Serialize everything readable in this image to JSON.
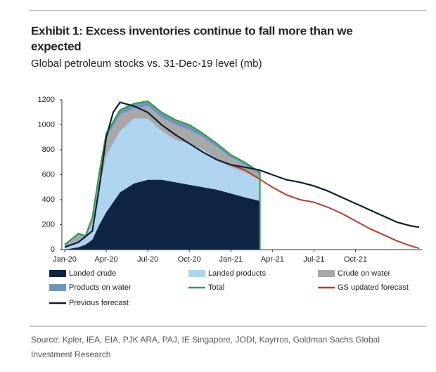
{
  "chart_data": {
    "type": "area",
    "title": [
      "Exhibit 1: Excess inventories continue to fall more than we",
      "expected"
    ],
    "subtitle": "Global petroleum stocks vs. 31-Dec-19 level (mb)",
    "source": [
      "Source: Kpler, IEA, EIA, PJK ARA, PAJ, IE Singapore, JODI, Kayrros, Goldman Sachs Global",
      "Investment Research"
    ],
    "xlim": [
      0,
      25.8
    ],
    "xticks": [
      {
        "value": 0,
        "label": "Jan-20"
      },
      {
        "value": 3,
        "label": "Apr-20"
      },
      {
        "value": 6,
        "label": "Jul-20"
      },
      {
        "value": 9,
        "label": "Oct-20"
      },
      {
        "value": 12,
        "label": "Jan-21"
      },
      {
        "value": 15,
        "label": "Apr-21"
      },
      {
        "value": 18,
        "label": "Jul-21"
      },
      {
        "value": 21,
        "label": "Oct-21"
      }
    ],
    "ylim": [
      0,
      1200
    ],
    "yticks": [
      0,
      200,
      400,
      600,
      800,
      1000,
      1200
    ],
    "series": [
      {
        "name": "Landed crude",
        "color": "#0f2444",
        "stacked": true,
        "x": [
          0,
          1,
          1.5,
          2,
          2.5,
          3,
          4,
          5,
          6,
          7,
          8,
          9,
          10,
          11,
          12,
          13,
          14.1
        ],
        "values": [
          0,
          20,
          40,
          80,
          200,
          300,
          460,
          530,
          560,
          560,
          540,
          520,
          500,
          480,
          450,
          420,
          390
        ]
      },
      {
        "name": "Landed products",
        "color": "#aed4ef",
        "stacked": true,
        "x": [
          0,
          1,
          1.5,
          2,
          2.5,
          3,
          4,
          5,
          6,
          7,
          8,
          9,
          10,
          11,
          12,
          13,
          14.1
        ],
        "values": [
          10,
          40,
          50,
          120,
          300,
          450,
          490,
          520,
          490,
          390,
          340,
          330,
          300,
          240,
          210,
          200,
          170
        ]
      },
      {
        "name": "Crude on water",
        "color": "#a8a8a8",
        "stacked": true,
        "x": [
          0,
          1,
          1.5,
          2,
          2.5,
          3,
          4,
          5,
          6,
          7,
          8,
          9,
          10,
          11,
          12,
          13,
          14.1
        ],
        "values": [
          20,
          60,
          10,
          50,
          100,
          150,
          130,
          80,
          100,
          110,
          120,
          110,
          100,
          100,
          80,
          60,
          40
        ]
      },
      {
        "name": "Products on water",
        "color": "#6f95bd",
        "stacked": true,
        "x": [
          0,
          1,
          1.5,
          2,
          2.5,
          3,
          4,
          5,
          6,
          7,
          8,
          9,
          10,
          11,
          12,
          13,
          14.1
        ],
        "values": [
          10,
          10,
          10,
          10,
          20,
          30,
          40,
          40,
          40,
          40,
          40,
          40,
          30,
          30,
          20,
          20,
          20
        ]
      },
      {
        "name": "Total",
        "color": "#2e9c4a",
        "x": [
          0,
          1,
          1.5,
          2,
          2.5,
          3,
          4,
          5,
          6,
          7,
          8,
          9,
          10,
          11,
          12,
          13,
          14.1,
          14.1
        ],
        "values": [
          40,
          130,
          110,
          260,
          620,
          930,
          1120,
          1170,
          1190,
          1100,
          1040,
          1000,
          930,
          850,
          760,
          700,
          620,
          0
        ]
      },
      {
        "name": "GS updated forecast",
        "color": "#c0392b",
        "x": [
          12,
          13,
          14,
          15,
          16,
          17,
          18,
          19,
          20,
          21,
          22,
          23,
          24,
          25,
          25.6
        ],
        "values": [
          680,
          640,
          570,
          500,
          440,
          400,
          380,
          340,
          290,
          230,
          170,
          120,
          70,
          30,
          10
        ]
      },
      {
        "name": "Previous forecast",
        "color": "#0b1f33",
        "x": [
          0,
          1,
          2,
          2.5,
          3,
          3.5,
          4,
          5,
          6,
          7,
          8,
          9,
          10,
          11,
          12,
          13,
          14,
          15,
          16,
          17,
          18,
          19,
          20,
          21,
          22,
          23,
          24,
          25,
          25.6
        ],
        "values": [
          20,
          60,
          150,
          500,
          900,
          1100,
          1180,
          1150,
          1100,
          1000,
          920,
          850,
          780,
          720,
          680,
          660,
          640,
          600,
          560,
          540,
          510,
          470,
          420,
          370,
          320,
          270,
          220,
          190,
          180
        ]
      }
    ]
  }
}
